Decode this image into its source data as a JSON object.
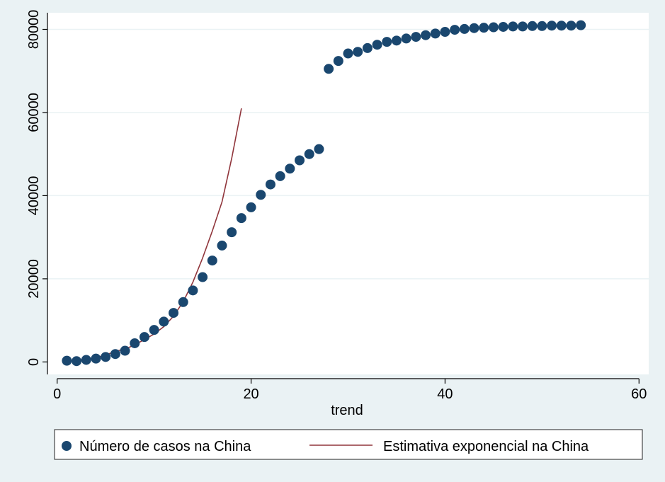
{
  "chart_data": {
    "type": "scatter",
    "title": "",
    "xlabel": "trend",
    "ylabel": "",
    "xlim": [
      -1,
      61
    ],
    "ylim": [
      -3000,
      84000
    ],
    "xticks": [
      0,
      20,
      40,
      60
    ],
    "yticks": [
      0,
      20000,
      40000,
      60000,
      80000
    ],
    "grid": "horizontal",
    "legend": "bottom",
    "colors": {
      "points": "#1a476f",
      "line": "#90353b",
      "plot_bg": "#ffffff",
      "page_bg": "#eaf2f4"
    },
    "series": [
      {
        "name": "Número de casos na China",
        "kind": "scatter",
        "x": [
          1,
          2,
          3,
          4,
          5,
          6,
          7,
          8,
          9,
          10,
          11,
          12,
          13,
          14,
          15,
          16,
          17,
          18,
          19,
          20,
          21,
          22,
          23,
          24,
          25,
          26,
          27,
          28,
          29,
          30,
          31,
          32,
          33,
          34,
          35,
          36,
          37,
          38,
          39,
          40,
          41,
          42,
          43,
          44,
          45,
          46,
          47,
          48,
          49,
          50,
          51,
          52,
          53,
          54
        ],
        "y": [
          300,
          200,
          500,
          800,
          1200,
          1900,
          2700,
          4500,
          6000,
          7700,
          9700,
          11800,
          14400,
          17200,
          20400,
          24400,
          28000,
          31200,
          34600,
          37200,
          40200,
          42700,
          44700,
          46500,
          48500,
          50000,
          51200,
          70500,
          72400,
          74200,
          74600,
          75500,
          76300,
          77000,
          77300,
          77800,
          78200,
          78600,
          79000,
          79400,
          79900,
          80100,
          80300,
          80400,
          80500,
          80600,
          80700,
          80700,
          80800,
          80800,
          80900,
          80900,
          80900,
          81000
        ]
      },
      {
        "name": "Estimativa exponencial na China",
        "kind": "line",
        "x": [
          1,
          2,
          3,
          4,
          5,
          6,
          7,
          8,
          9,
          10,
          11,
          12,
          13,
          14,
          15,
          16,
          17,
          18,
          19
        ],
        "y": [
          270,
          430,
          680,
          1060,
          1660,
          2550,
          3100,
          4100,
          5400,
          6700,
          8500,
          11000,
          14500,
          19200,
          25000,
          31500,
          38500,
          49000,
          61000
        ]
      }
    ]
  }
}
